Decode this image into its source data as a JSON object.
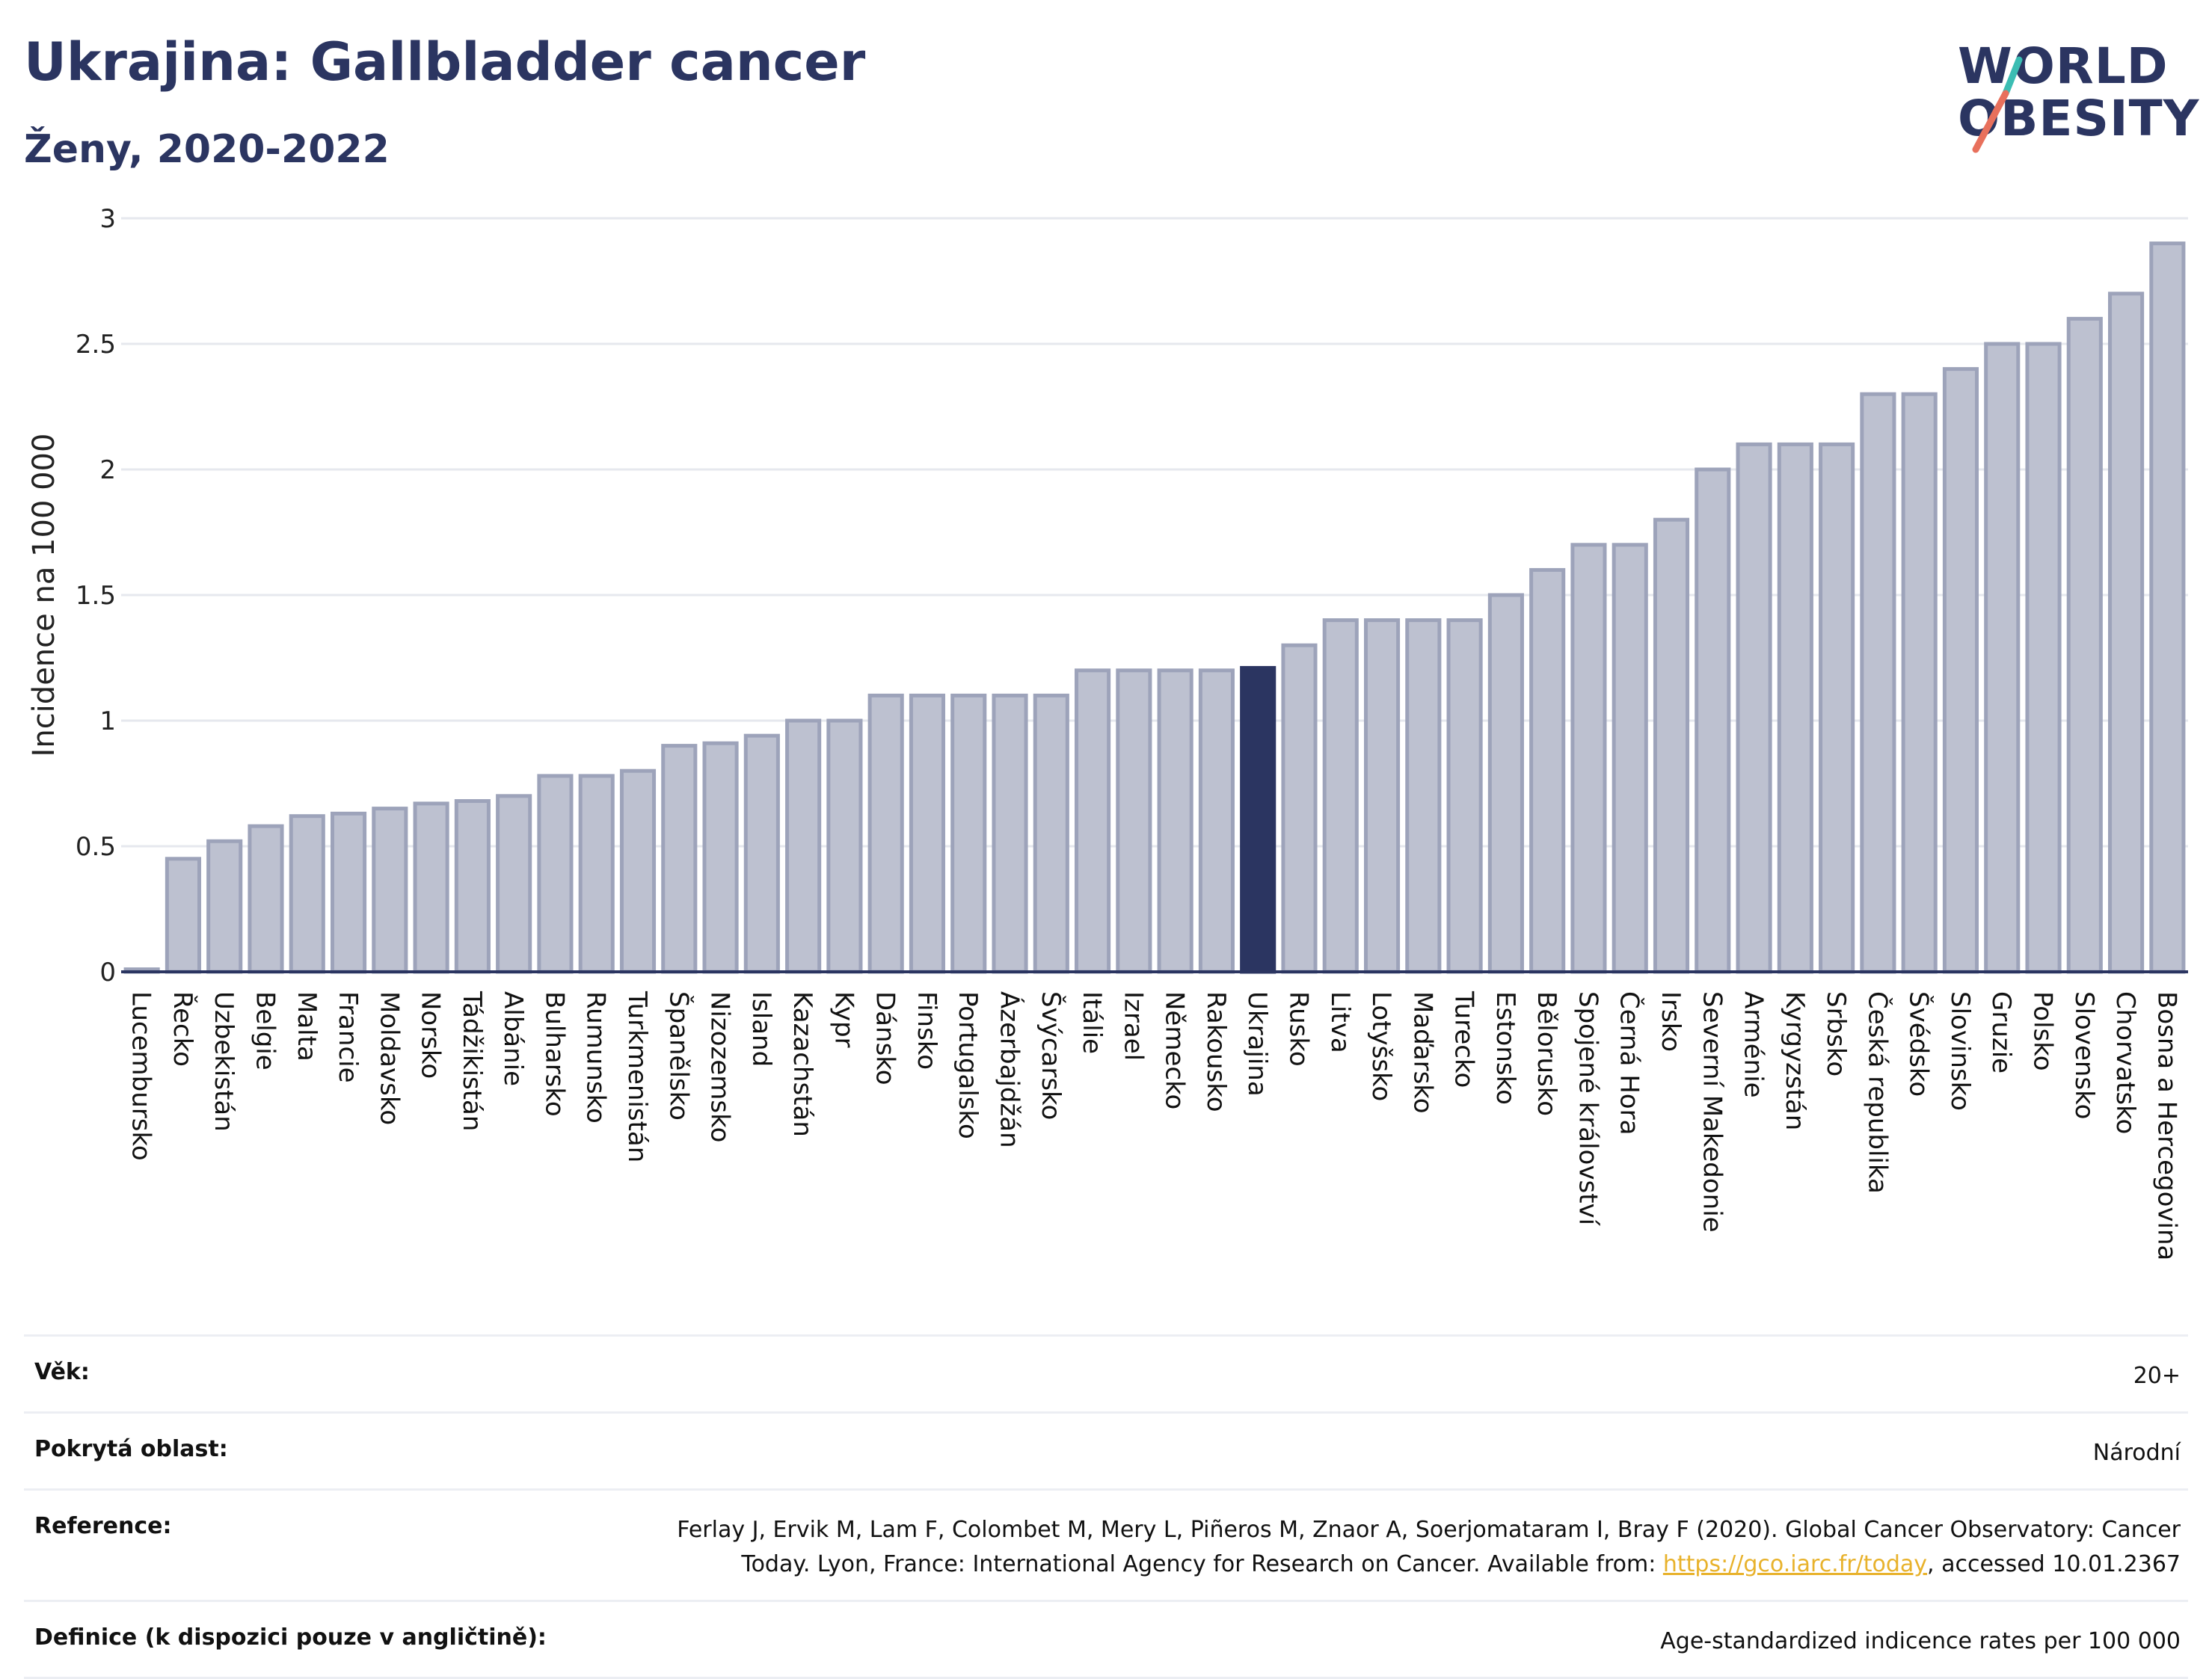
{
  "header": {
    "title": "Ukrajina: Gallbladder cancer",
    "subtitle": "Ženy, 2020-2022"
  },
  "logo": {
    "line1": "WORLD",
    "line2": "OBESITY"
  },
  "colors": {
    "bar": "#bdc1d0",
    "bar_edge": "#9da3ba",
    "highlight": "#2b3561",
    "logo_slash": [
      "#3bbdb3",
      "#e8705c"
    ]
  },
  "chart_data": {
    "type": "bar",
    "categories": [
      "Lucembursko",
      "Řecko",
      "Uzbekistán",
      "Belgie",
      "Malta",
      "Francie",
      "Moldavsko",
      "Norsko",
      "Tádžikistán",
      "Albánie",
      "Bulharsko",
      "Rumunsko",
      "Turkmenistán",
      "Španělsko",
      "Nizozemsko",
      "Island",
      "Kazachstán",
      "Kypr",
      "Dánsko",
      "Finsko",
      "Portugalsko",
      "Ázerbajdžán",
      "Švýcarsko",
      "Itálie",
      "Izrael",
      "Německo",
      "Rakousko",
      "Ukrajina",
      "Rusko",
      "Litva",
      "Lotyšsko",
      "Maďarsko",
      "Turecko",
      "Estonsko",
      "Bělorusko",
      "Spojené království",
      "Černá Hora",
      "Irsko",
      "Severní Makedonie",
      "Arménie",
      "Kyrgyzstán",
      "Srbsko",
      "Česká republika",
      "Švédsko",
      "Slovinsko",
      "Gruzie",
      "Polsko",
      "Slovensko",
      "Chorvatsko",
      "Bosna a Hercegovina"
    ],
    "values": [
      0.01,
      0.45,
      0.52,
      0.58,
      0.62,
      0.63,
      0.65,
      0.67,
      0.68,
      0.7,
      0.78,
      0.78,
      0.8,
      0.9,
      0.91,
      0.94,
      1.0,
      1.0,
      1.1,
      1.1,
      1.1,
      1.1,
      1.1,
      1.2,
      1.2,
      1.2,
      1.2,
      1.21,
      1.3,
      1.4,
      1.4,
      1.4,
      1.4,
      1.5,
      1.6,
      1.7,
      1.7,
      1.8,
      2.0,
      2.1,
      2.1,
      2.1,
      2.3,
      2.3,
      2.4,
      2.5,
      2.5,
      2.6,
      2.7,
      2.9
    ],
    "highlight": "Ukrajina",
    "ylabel": "Incidence na 100 000",
    "xlabel": "",
    "ylim": [
      0,
      3
    ],
    "yticks": [
      0,
      0.5,
      1,
      1.5,
      2,
      2.5,
      3
    ],
    "ytick_labels": [
      "0",
      "0.5",
      "1",
      "1.5",
      "2",
      "2.5",
      "3"
    ],
    "grid": true
  },
  "info": {
    "age_label": "Věk:",
    "age_value": "20+",
    "area_label": "Pokrytá oblast:",
    "area_value": "Národní",
    "ref_label": "Reference:",
    "ref_text_1": "Ferlay J, Ervik M, Lam F, Colombet M, Mery L, Piñeros M, Znaor A, Soerjomataram I, Bray F (2020). Global Cancer Observatory: Cancer",
    "ref_text_2": "Today. Lyon, France: International Agency for Research on Cancer. Available from: ",
    "ref_link": "https://gco.iarc.fr/today",
    "ref_text_3": ", accessed 10.01.2367",
    "def_label": "Definice (k dispozici pouze v angličtině):",
    "def_value": "Age-standardized indicence rates per 100 000"
  }
}
